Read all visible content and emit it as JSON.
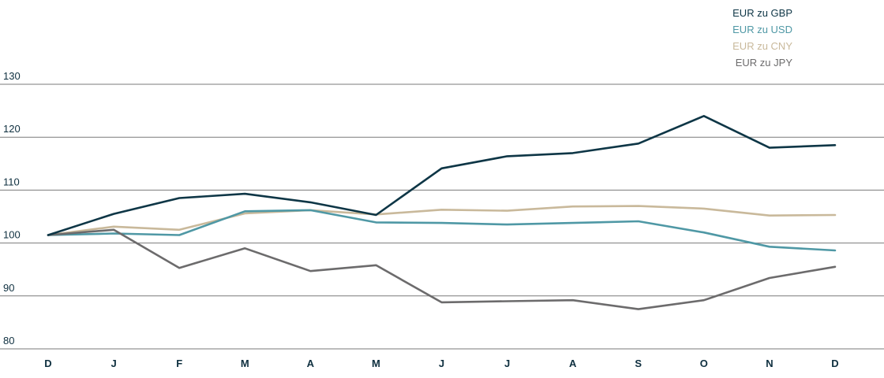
{
  "chart_data": {
    "type": "line",
    "title": "",
    "xlabel": "",
    "ylabel": "",
    "categories": [
      "D",
      "J",
      "F",
      "M",
      "A",
      "M",
      "J",
      "J",
      "A",
      "S",
      "O",
      "N",
      "D"
    ],
    "yticks": [
      80,
      90,
      100,
      110,
      120,
      130
    ],
    "ylim": [
      78,
      130
    ],
    "grid": "horizontal",
    "legend_position": "top-right",
    "series": [
      {
        "name": "EUR zu GBP",
        "color": "#0e3646",
        "values": [
          101.5,
          105.5,
          108.5,
          109.3,
          107.7,
          105.3,
          114.1,
          116.4,
          117.0,
          118.8,
          124.0,
          118.0,
          118.5
        ]
      },
      {
        "name": "EUR zu USD",
        "color": "#4f98a5",
        "values": [
          101.5,
          101.8,
          101.5,
          106.0,
          106.2,
          103.9,
          103.8,
          103.5,
          103.8,
          104.1,
          102.0,
          99.3,
          98.6
        ]
      },
      {
        "name": "EUR zu CNY",
        "color": "#c9b99b",
        "values": [
          101.5,
          103.1,
          102.5,
          105.6,
          106.2,
          105.4,
          106.3,
          106.1,
          106.9,
          107.0,
          106.5,
          105.2,
          105.3
        ]
      },
      {
        "name": "EUR zu JPY",
        "color": "#6c6b6c",
        "values": [
          101.5,
          102.5,
          95.3,
          99.0,
          94.7,
          95.8,
          88.8,
          89.0,
          89.2,
          87.5,
          89.2,
          93.4,
          95.5
        ]
      }
    ]
  }
}
